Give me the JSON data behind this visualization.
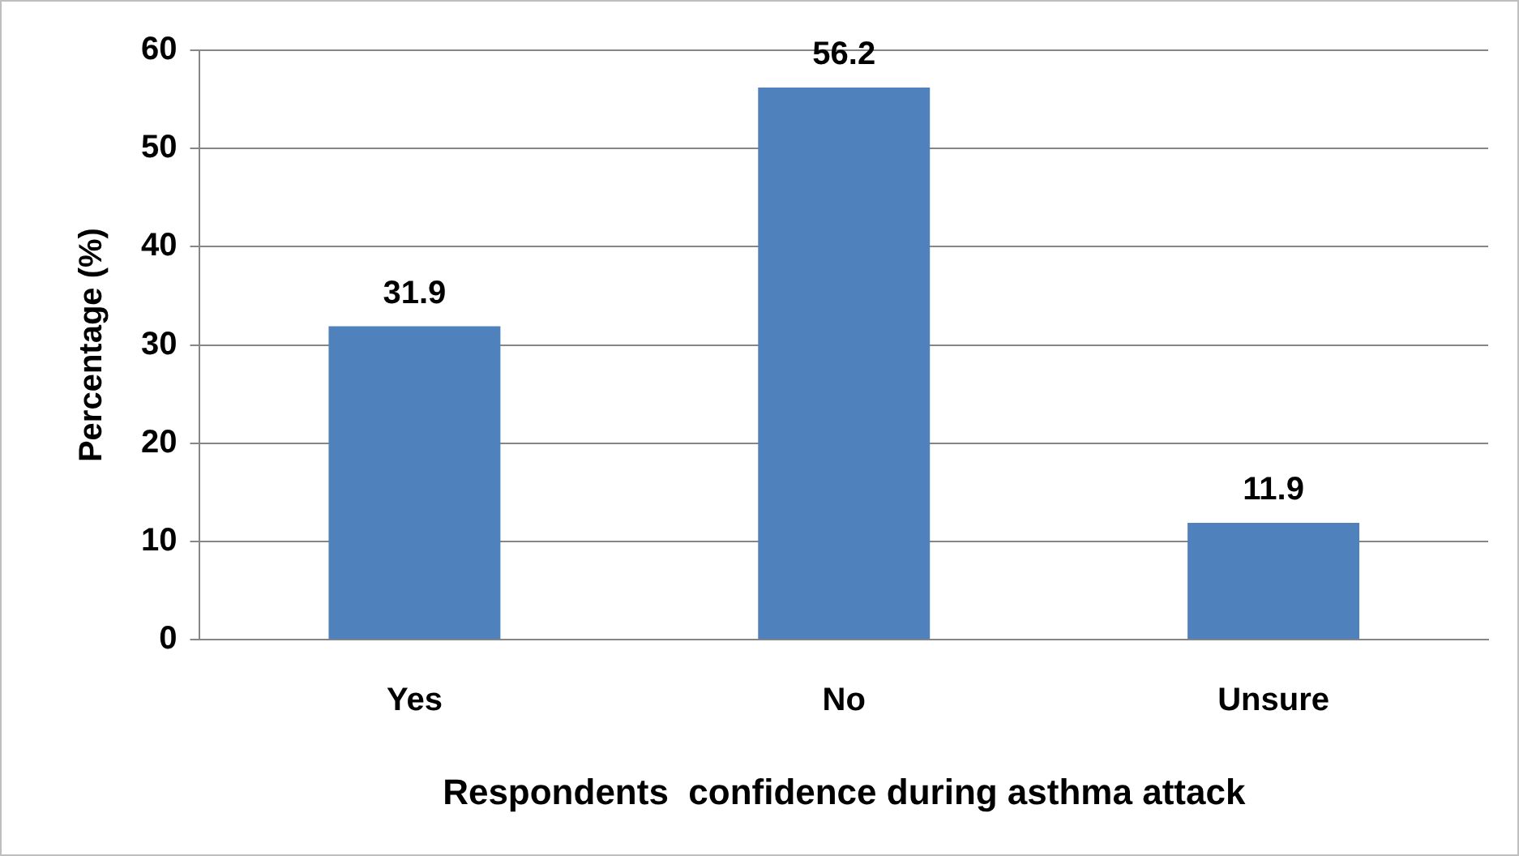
{
  "chart_data": {
    "type": "bar",
    "xlabel": "Respondents  confidence during asthma attack",
    "ylabel": "Percentage (%)",
    "categories": [
      "Yes",
      "No",
      "Unsure"
    ],
    "values": [
      31.9,
      56.2,
      11.9
    ],
    "color": "#4f81bd",
    "ylim": [
      0,
      60
    ],
    "yticks": [
      0,
      10,
      20,
      30,
      40,
      50,
      60
    ],
    "grid": "y",
    "data_labels": true,
    "legend": false
  }
}
